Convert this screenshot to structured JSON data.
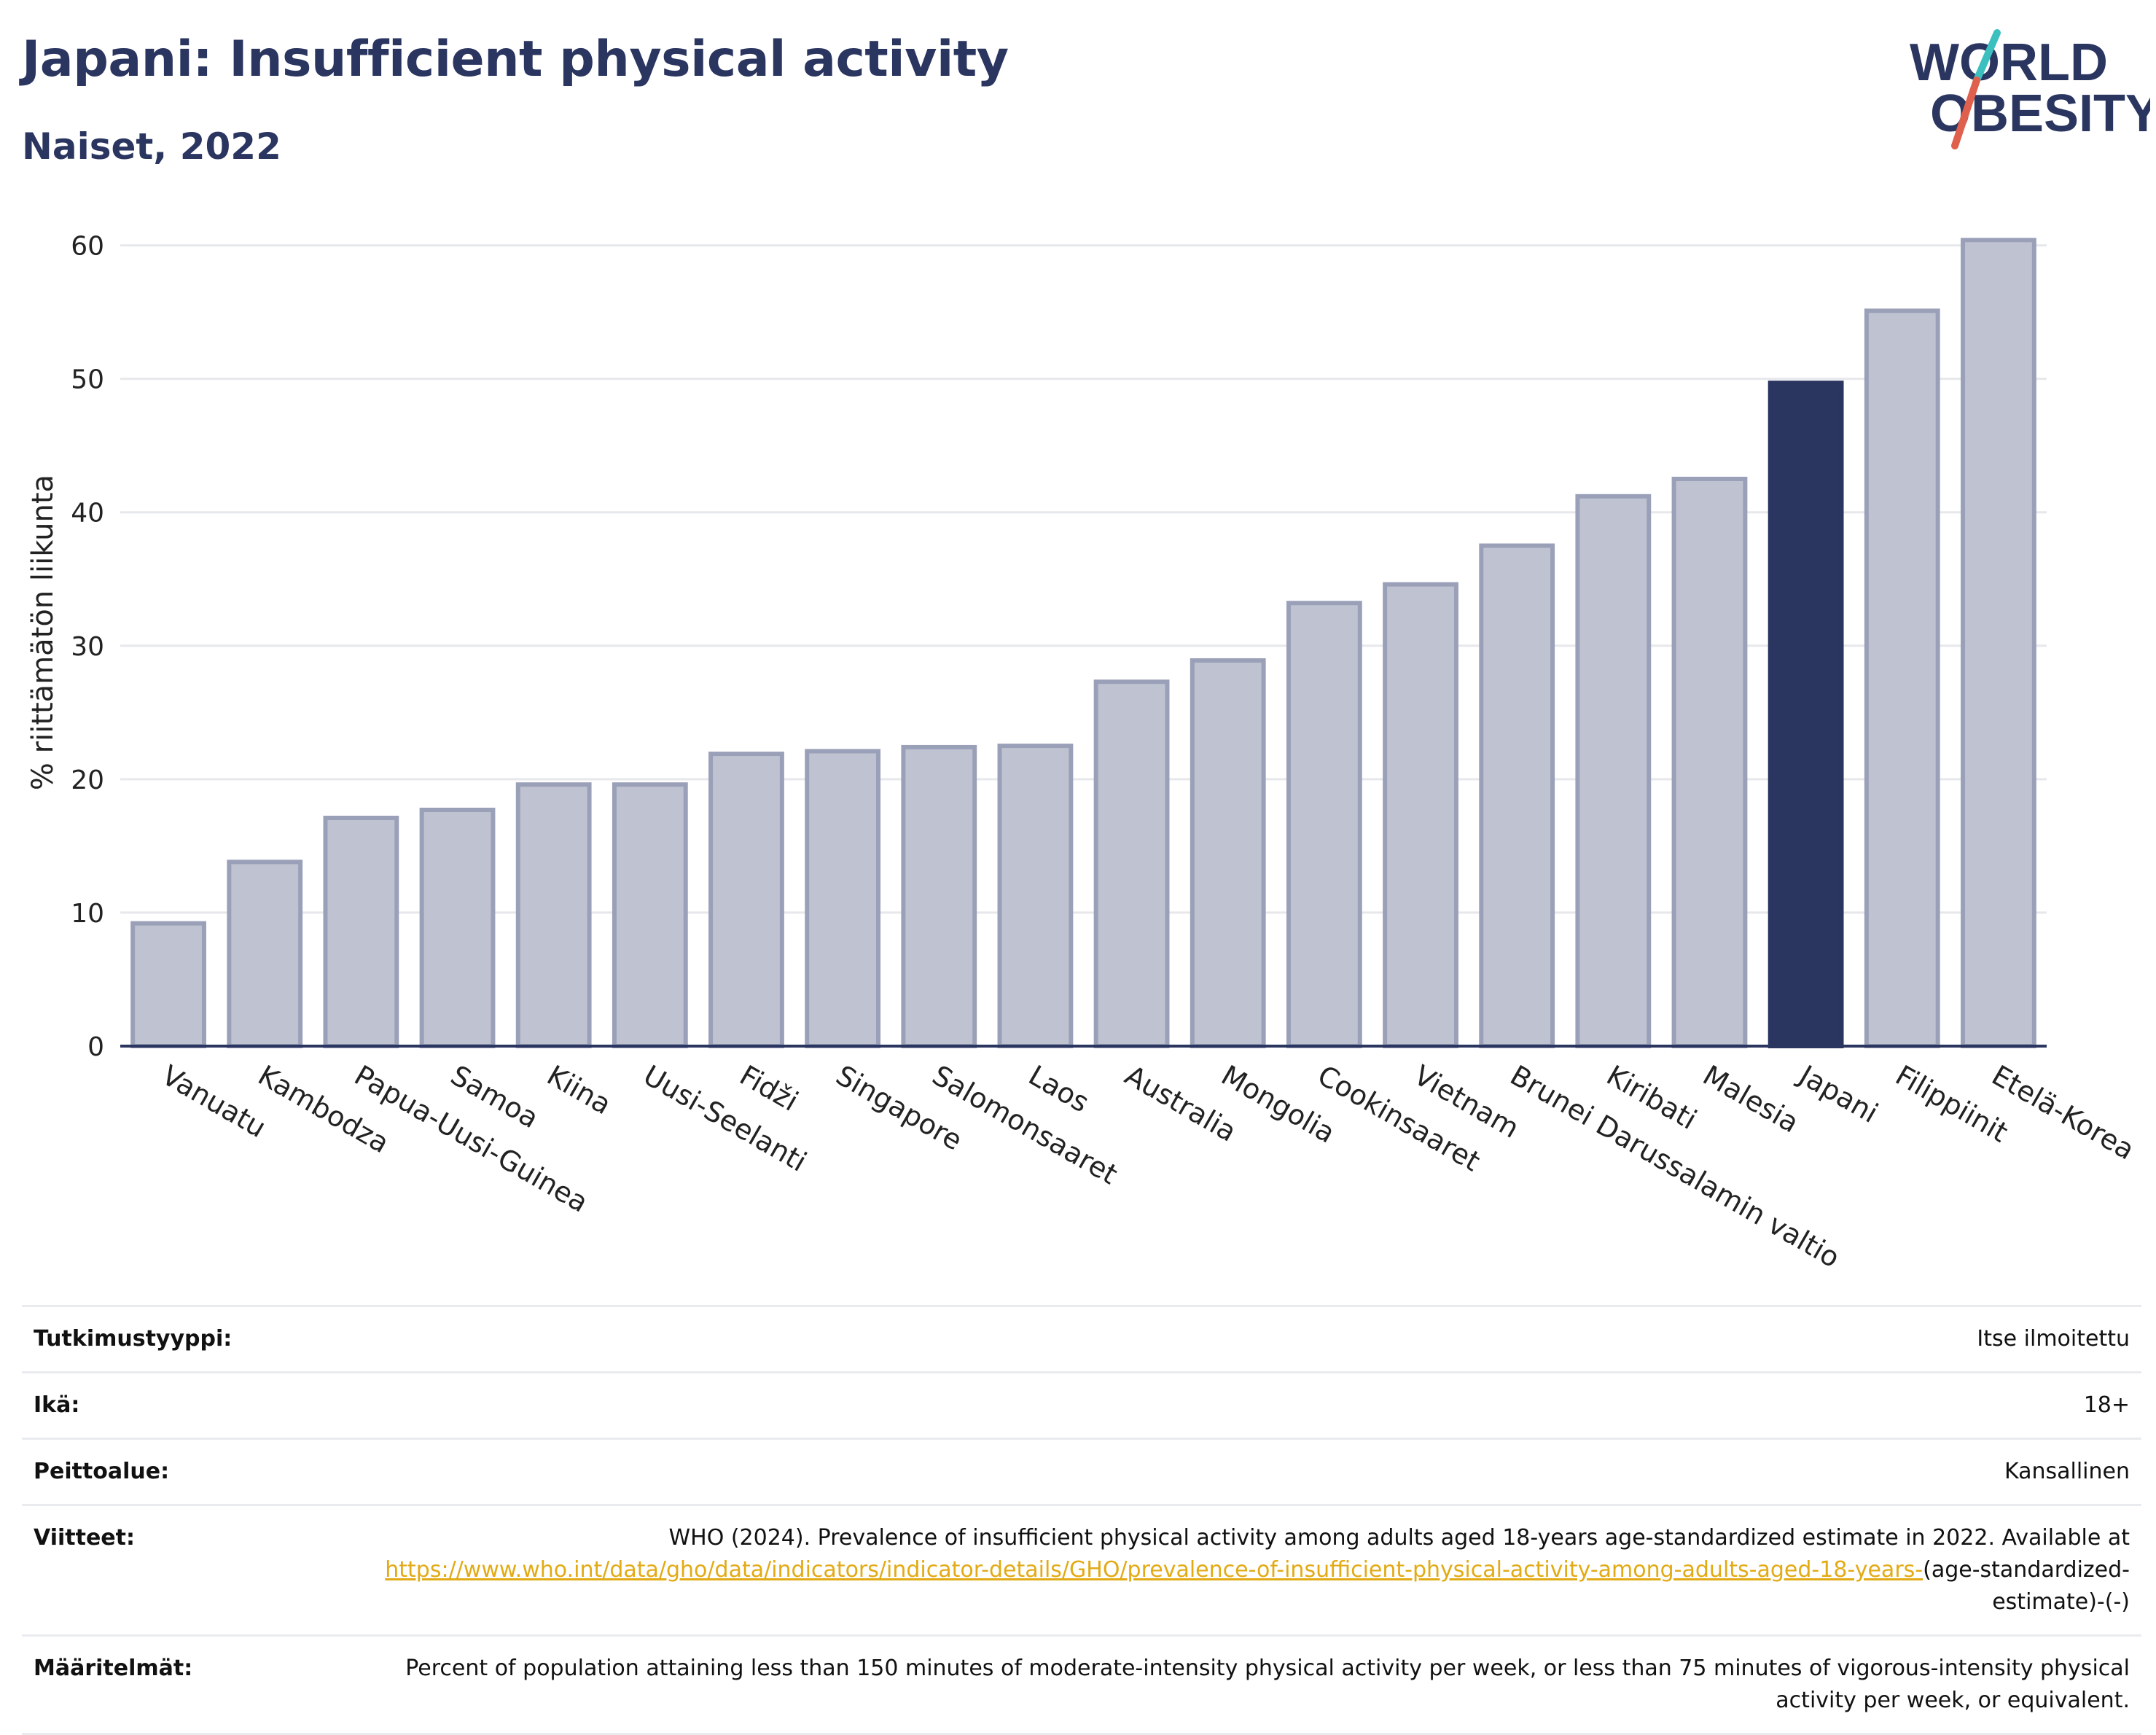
{
  "header": {
    "title": "Japani: Insufficient physical activity",
    "subtitle": "Naiset, 2022"
  },
  "logo": {
    "line1": "WORLD",
    "line2": "OBESITY",
    "colors": {
      "text": "#2a3560",
      "slash_teal": "#3bbfbf",
      "slash_red": "#e0604e"
    }
  },
  "chart_data": {
    "type": "bar",
    "ylabel": "% riittämätön liikunta",
    "xlabel": "",
    "ylim": [
      0,
      62
    ],
    "yticks": [
      0,
      10,
      20,
      30,
      40,
      50,
      60
    ],
    "grid": true,
    "categories": [
      "Vanuatu",
      "Kambodza",
      "Papua-Uusi-Guinea",
      "Samoa",
      "Kiina",
      "Uusi-Seelanti",
      "Fidži",
      "Singapore",
      "Salomonsaaret",
      "Laos",
      "Australia",
      "Mongolia",
      "Cookinsaaret",
      "Vietnam",
      "Brunei Darussalamin valtio",
      "Kiribati",
      "Malesia",
      "Japani",
      "Filippiinit",
      "Etelä-Korea"
    ],
    "values": [
      9.2,
      13.8,
      17.1,
      17.7,
      19.6,
      19.6,
      21.9,
      22.1,
      22.4,
      22.5,
      27.3,
      28.9,
      33.2,
      34.6,
      37.5,
      41.2,
      42.5,
      49.7,
      55.1,
      60.4
    ],
    "highlight": "Japani",
    "colors": {
      "bar": "#bfc3d1",
      "bar_border": "#9aa0b8",
      "highlight": "#2a3560",
      "grid": "#e6e8ec",
      "axis": "#2a3560"
    }
  },
  "meta": {
    "study_type_label": "Tutkimustyyppi:",
    "study_type_value": "Itse ilmoitettu",
    "age_label": "Ikä:",
    "age_value": "18+",
    "coverage_label": "Peittoalue:",
    "coverage_value": "Kansallinen",
    "refs_label": "Viitteet:",
    "refs_text": "WHO (2024). Prevalence of insufficient physical activity among adults aged 18-years age-standardized estimate in 2022. Available at ",
    "refs_link": "https://www.who.int/data/gho/data/indicators/indicator-details/GHO/prevalence-of-insufficient-physical-activity-among-adults-aged-18-years-",
    "refs_tail": "(age-standardized-estimate)-(-)",
    "defs_label": "Määritelmät:",
    "defs_value": "Percent of population attaining less than 150 minutes of moderate-intensity physical activity per week, or less than 75 minutes of vigorous-intensity physical activity per week, or equivalent."
  }
}
